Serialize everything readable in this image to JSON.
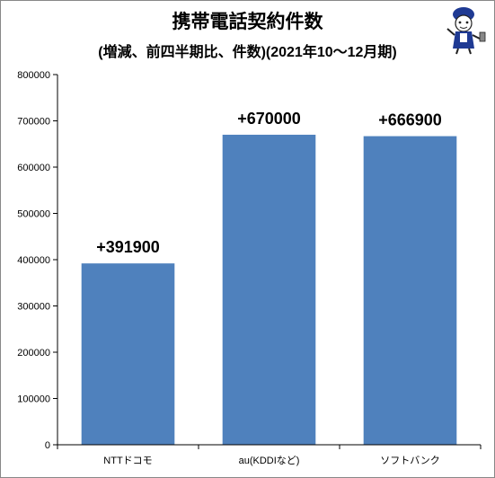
{
  "chart_data": {
    "type": "bar",
    "title": "携帯電話契約件数",
    "subtitle": "(増減、前四半期比、件数)(2021年10～12月期)",
    "categories": [
      "NTTドコモ",
      "au(KDDIなど)",
      "ソフトバンク"
    ],
    "values": [
      391900,
      670000,
      666900
    ],
    "data_labels": [
      "+391900",
      "+670000",
      "+666900"
    ],
    "ylim": [
      0,
      800000
    ],
    "yticks": [
      "0",
      "100000",
      "200000",
      "300000",
      "400000",
      "500000",
      "600000",
      "700000",
      "800000"
    ],
    "xlabel": "",
    "ylabel": "",
    "grid": false,
    "legend": false,
    "bar_color": "#4f81bd"
  }
}
